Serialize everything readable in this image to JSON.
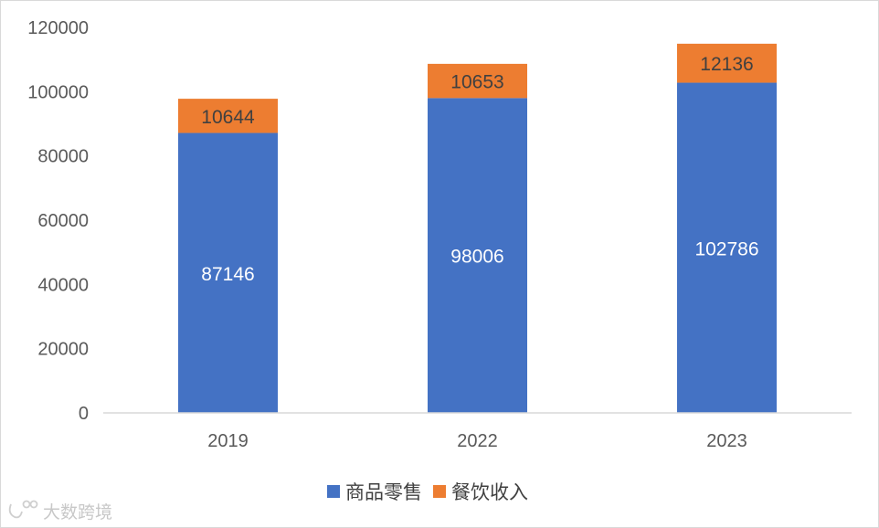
{
  "chart_data": {
    "type": "bar",
    "stacked": true,
    "categories": [
      "2019",
      "2022",
      "2023"
    ],
    "series": [
      {
        "name": "商品零售",
        "values": [
          87146,
          98006,
          102786
        ],
        "color": "#4472C4"
      },
      {
        "name": "餐饮收入",
        "values": [
          10644,
          10653,
          12136
        ],
        "color": "#ED7D31"
      }
    ],
    "ylim": [
      0,
      120000
    ],
    "yticks": [
      "0",
      "20000",
      "40000",
      "60000",
      "80000",
      "100000",
      "120000"
    ],
    "grid": false,
    "legend": "bottom"
  },
  "watermark": {
    "text": "大数跨境"
  }
}
